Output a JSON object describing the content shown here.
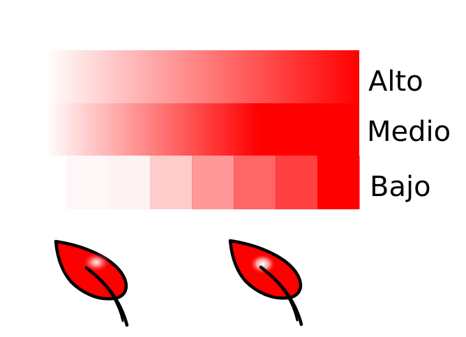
{
  "labels": {
    "high": "Alto",
    "medium": "Medio",
    "low": "Bajo"
  },
  "colors": {
    "accent": "#ff0000",
    "outline": "#000000",
    "background": "#ffffff"
  },
  "low_steps_opacity": [
    0.03,
    0.05,
    0.2,
    0.4,
    0.6,
    0.75,
    1.0
  ],
  "icons": [
    "leaf-soft-highlight-icon",
    "leaf-sharp-highlight-icon"
  ]
}
